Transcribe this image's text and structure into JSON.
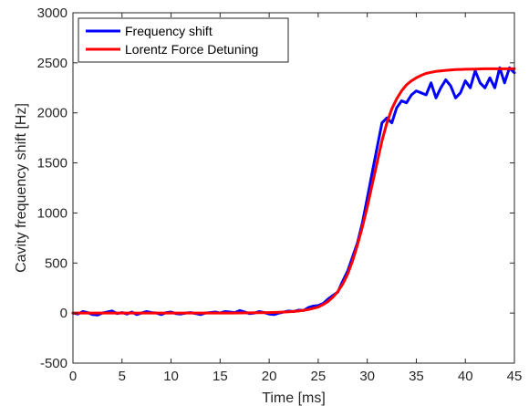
{
  "chart_data": {
    "type": "line",
    "xlabel": "Time [ms]",
    "ylabel": "Cavity frequency shift [Hz]",
    "xlim": [
      0,
      45
    ],
    "ylim": [
      -500,
      3000
    ],
    "xticks": [
      0,
      5,
      10,
      15,
      20,
      25,
      30,
      35,
      40,
      45
    ],
    "yticks": [
      -500,
      0,
      500,
      1000,
      1500,
      2000,
      2500,
      3000
    ],
    "grid": false,
    "legend_position": "top-left",
    "series": [
      {
        "name": "Frequency shift",
        "color": "#0000ff",
        "x": [
          0,
          0.5,
          1,
          1.5,
          2,
          2.5,
          3,
          3.5,
          4,
          4.5,
          5,
          5.5,
          6,
          6.5,
          7,
          7.5,
          8,
          8.5,
          9,
          9.5,
          10,
          10.5,
          11,
          11.5,
          12,
          12.5,
          13,
          13.5,
          14,
          14.5,
          15,
          15.5,
          16,
          16.5,
          17,
          17.5,
          18,
          18.5,
          19,
          19.5,
          20,
          20.5,
          21,
          21.5,
          22,
          22.5,
          23,
          23.5,
          24,
          24.5,
          25,
          25.5,
          26,
          26.5,
          27,
          27.5,
          28,
          28.5,
          29,
          29.5,
          30,
          30.5,
          31,
          31.5,
          32,
          32.5,
          33,
          33.5,
          34,
          34.5,
          35,
          35.5,
          36,
          36.5,
          37,
          37.5,
          38,
          38.5,
          39,
          39.5,
          40,
          40.5,
          41,
          41.5,
          42,
          42.5,
          43,
          43.5,
          44,
          44.5,
          45
        ],
        "y": [
          0,
          -10,
          15,
          5,
          -15,
          -20,
          0,
          10,
          20,
          -5,
          5,
          -10,
          10,
          -15,
          0,
          15,
          5,
          0,
          -15,
          5,
          10,
          -5,
          -10,
          0,
          5,
          -5,
          -15,
          0,
          5,
          10,
          0,
          15,
          10,
          5,
          25,
          10,
          -5,
          0,
          15,
          5,
          -10,
          -15,
          0,
          10,
          20,
          15,
          30,
          25,
          55,
          70,
          75,
          95,
          140,
          175,
          210,
          320,
          420,
          560,
          700,
          900,
          1150,
          1400,
          1650,
          1900,
          1950,
          1900,
          2050,
          2120,
          2100,
          2180,
          2220,
          2200,
          2180,
          2300,
          2150,
          2250,
          2330,
          2270,
          2150,
          2200,
          2320,
          2250,
          2420,
          2300,
          2250,
          2350,
          2250,
          2450,
          2300,
          2450,
          2400
        ]
      },
      {
        "name": "Lorentz Force Detuning",
        "color": "#ff0000",
        "x": [
          0,
          2,
          4,
          6,
          8,
          10,
          12,
          14,
          16,
          18,
          20,
          21,
          22,
          23,
          24,
          25,
          25.5,
          26,
          26.5,
          27,
          27.5,
          28,
          28.5,
          29,
          29.5,
          30,
          30.5,
          31,
          31.5,
          32,
          32.5,
          33,
          33.5,
          34,
          34.5,
          35,
          35.5,
          36,
          36.5,
          37,
          38,
          39,
          40,
          41,
          42,
          43,
          44,
          45
        ],
        "y": [
          0,
          0,
          0,
          0,
          0,
          0,
          0,
          0,
          0,
          2,
          5,
          8,
          12,
          20,
          35,
          60,
          85,
          115,
          160,
          215,
          290,
          390,
          520,
          680,
          860,
          1060,
          1280,
          1500,
          1720,
          1900,
          2040,
          2140,
          2220,
          2280,
          2320,
          2350,
          2375,
          2395,
          2405,
          2415,
          2425,
          2432,
          2436,
          2438,
          2440,
          2440,
          2440,
          2440
        ]
      }
    ]
  }
}
